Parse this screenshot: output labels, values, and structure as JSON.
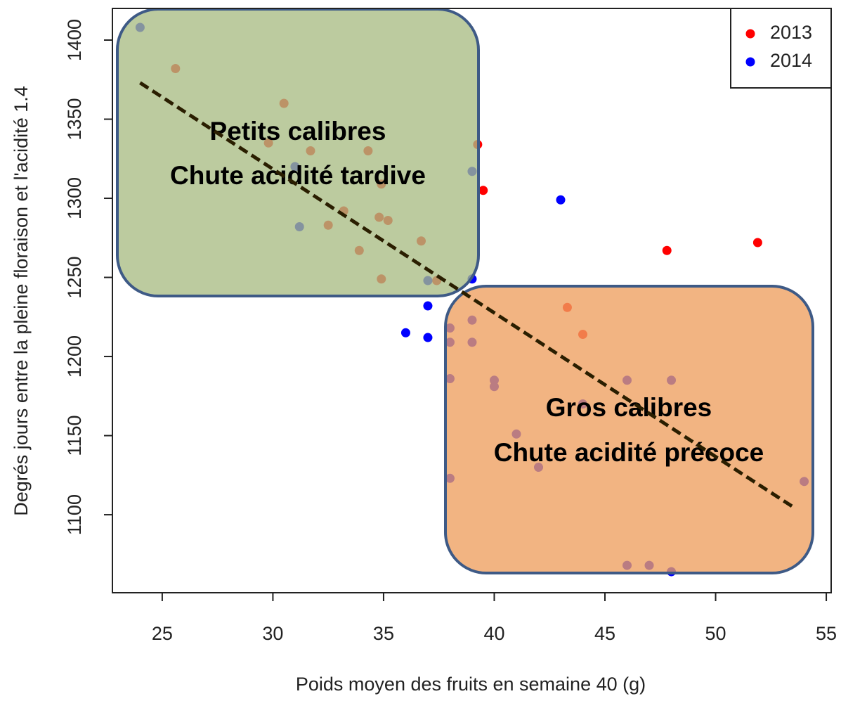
{
  "chart_data": {
    "type": "scatter",
    "x_label": "Poids moyen des fruits en semaine 40 (g)",
    "y_label": "Degrés jours entre la pleine floraison et l'acidité 1.4",
    "xlim": [
      22.75,
      55.22
    ],
    "ylim": [
      1050.7,
      1420
    ],
    "xticks": [
      25,
      30,
      35,
      40,
      45,
      50,
      55
    ],
    "yticks": [
      1100,
      1150,
      1200,
      1250,
      1300,
      1350,
      1400
    ],
    "grid": false,
    "legend": "topright",
    "series": [
      {
        "name": "2013",
        "color": "#ff0000",
        "x": [
          25.6,
          30.5,
          29.8,
          31.7,
          34.3,
          39.25,
          34.9,
          39.5,
          33.2,
          34.8,
          35.2,
          32.5,
          36.7,
          33.9,
          34.9,
          37.4,
          47.8,
          51.9,
          43.3,
          44
        ],
        "y": [
          1382,
          1360,
          1335,
          1330,
          1330,
          1334,
          1309,
          1305,
          1292,
          1288,
          1286,
          1283,
          1273,
          1267,
          1249,
          1248,
          1267,
          1272,
          1231,
          1214
        ]
      },
      {
        "name": "2014",
        "color": "#0000ff",
        "x": [
          24,
          31,
          31.2,
          39,
          43,
          37,
          39,
          37,
          36,
          37,
          38,
          38,
          39,
          39,
          38,
          40,
          40,
          46,
          48,
          41,
          42,
          38,
          54,
          46,
          47,
          48,
          44
        ],
        "y": [
          1408,
          1320,
          1282,
          1317,
          1299,
          1248,
          1249,
          1232,
          1215,
          1212,
          1218,
          1209,
          1223,
          1209,
          1186,
          1185,
          1181,
          1185,
          1185,
          1151,
          1130,
          1123,
          1121,
          1068,
          1068,
          1064,
          1170
        ]
      }
    ],
    "trend_line": {
      "x": [
        24,
        53.6
      ],
      "y": [
        1373,
        1104
      ]
    },
    "annotations": [
      {
        "lines": [
          "Petits calibres",
          "Chute acidité tardive"
        ]
      },
      {
        "lines": [
          "Gros calibres",
          "Chute acidité précoce"
        ]
      }
    ]
  }
}
